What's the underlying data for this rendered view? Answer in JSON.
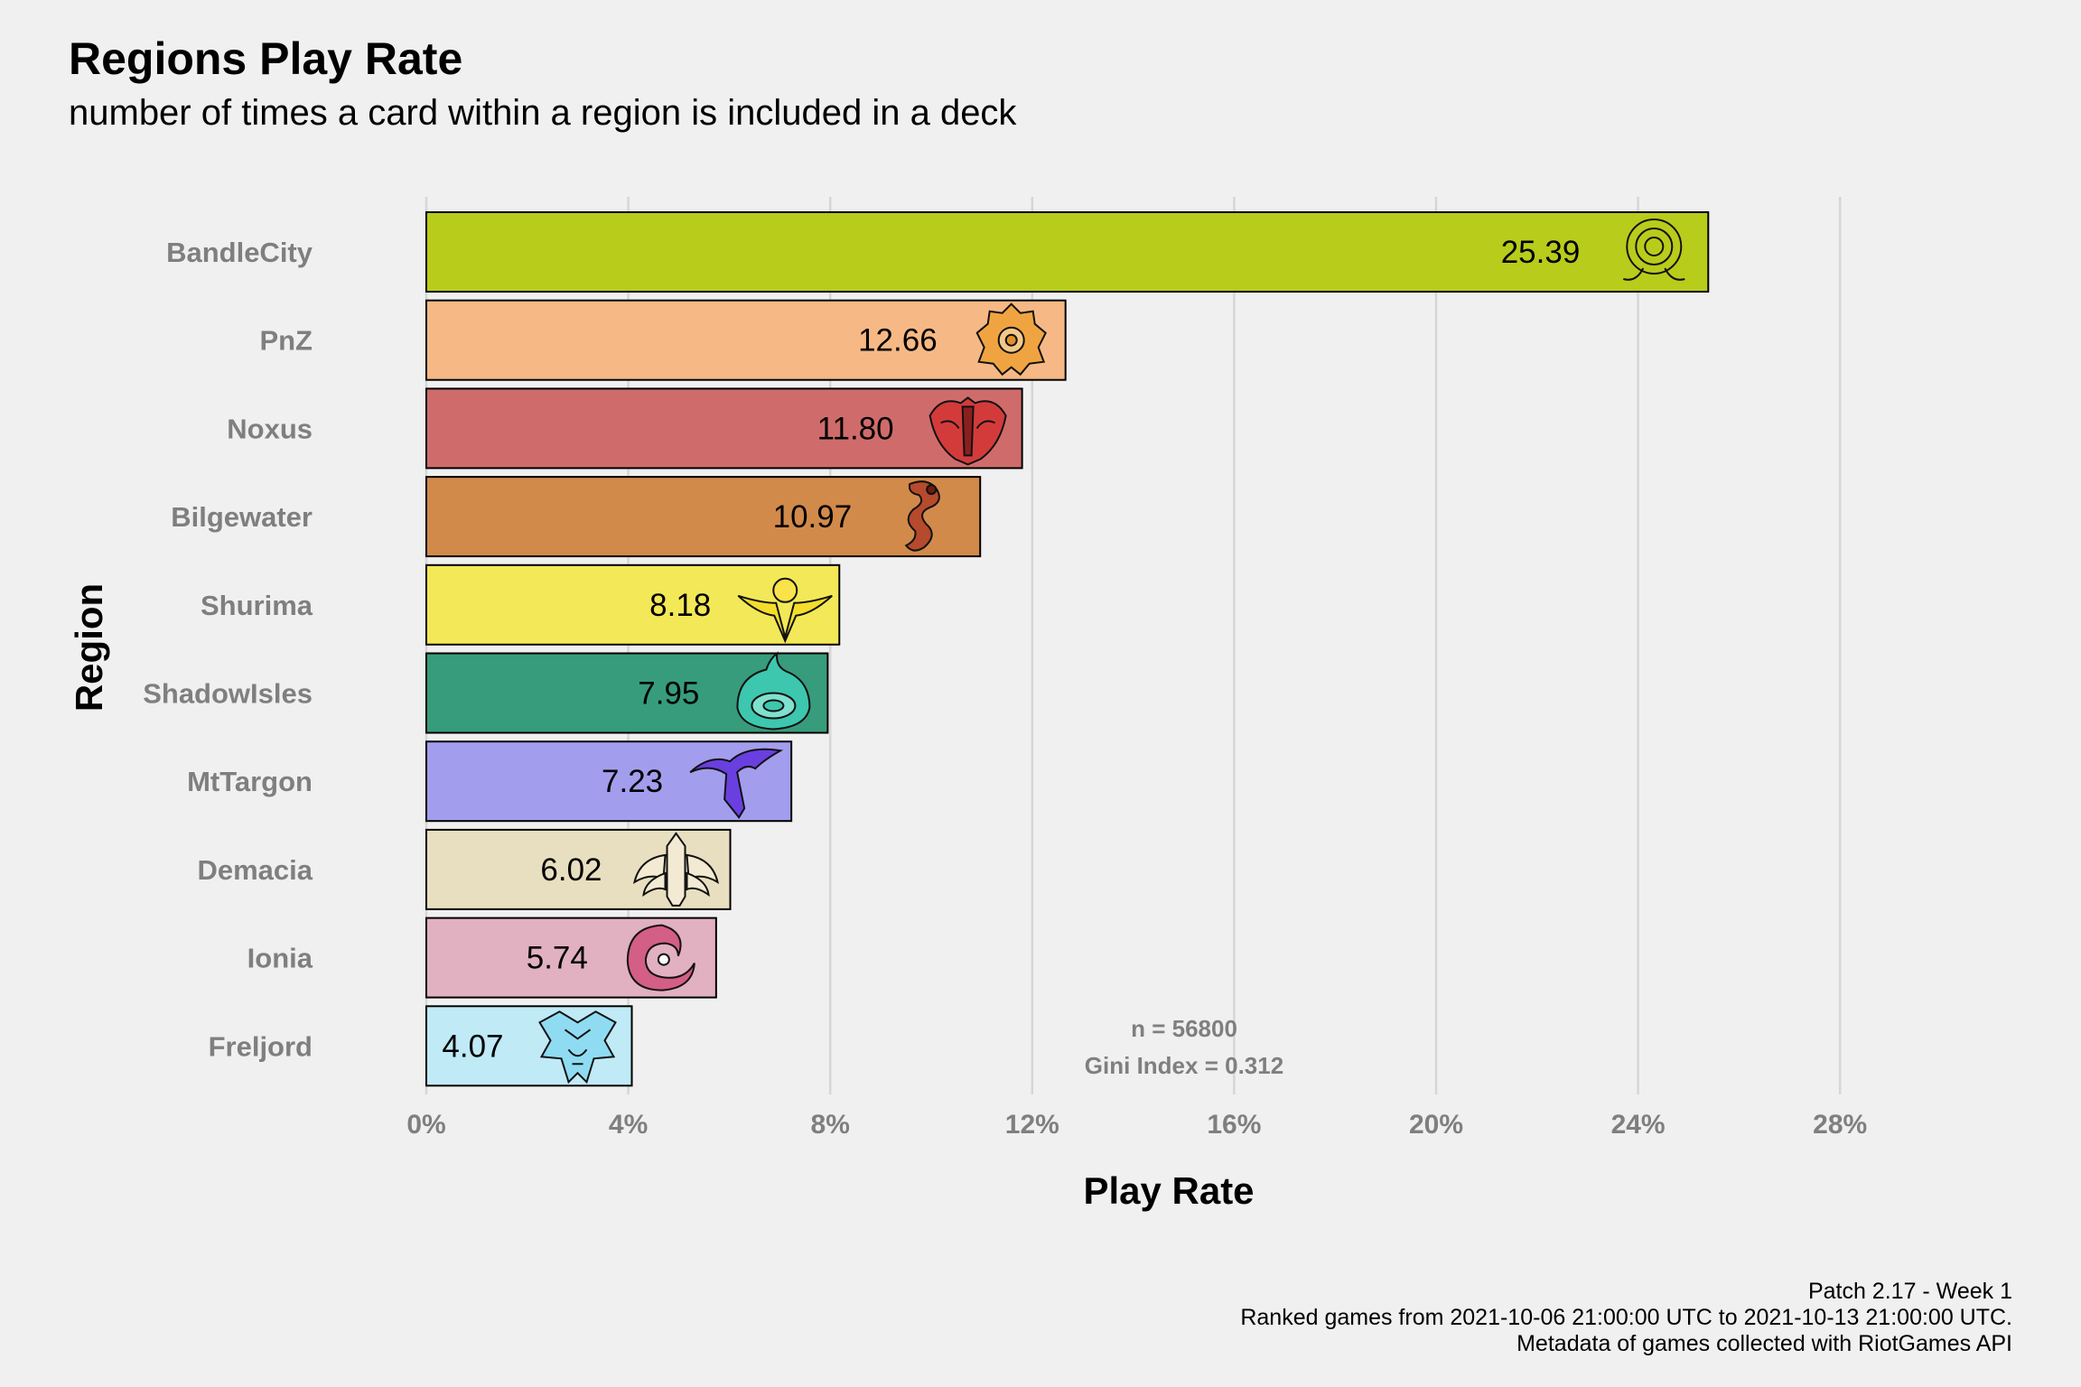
{
  "chart_data": {
    "type": "bar",
    "orientation": "horizontal",
    "title": "Regions Play Rate",
    "subtitle": "number of times a card within a region is included in a deck",
    "xlabel": "Play Rate",
    "ylabel": "Region",
    "xlim": [
      0,
      28
    ],
    "x_ticks": [
      "0%",
      "4%",
      "8%",
      "12%",
      "16%",
      "20%",
      "24%",
      "28%"
    ],
    "grid": "vertical",
    "categories": [
      "BandleCity",
      "PnZ",
      "Noxus",
      "Bilgewater",
      "Shurima",
      "ShadowIsles",
      "MtTargon",
      "Demacia",
      "Ionia",
      "Freljord"
    ],
    "values": [
      25.39,
      12.66,
      11.8,
      10.97,
      8.18,
      7.95,
      7.23,
      6.02,
      5.74,
      4.07
    ],
    "value_labels": [
      "25.39",
      "12.66",
      "11.80",
      "10.97",
      "8.18",
      "7.95",
      "7.23",
      "6.02",
      "5.74",
      "4.07"
    ],
    "colors": [
      "#b8cc1b",
      "#f6b985",
      "#cf6c6b",
      "#d28a4b",
      "#f3e858",
      "#379c7c",
      "#a39ded",
      "#e8dfc0",
      "#e1b0c1",
      "#bfeaf6"
    ],
    "icon_colors": [
      "#b8cc1b",
      "#f0a441",
      "#d33b3b",
      "#b54a2c",
      "#f4dd2b",
      "#3dc7ae",
      "#6a3fe0",
      "#f2ead2",
      "#d35e86",
      "#8fdcf2"
    ],
    "icons": [
      "bandlecity-icon",
      "pnz-icon",
      "noxus-icon",
      "bilgewater-icon",
      "shurima-icon",
      "shadowisles-icon",
      "mttargon-icon",
      "demacia-icon",
      "ionia-icon",
      "freljord-icon"
    ],
    "annotations": [
      "n = 56800",
      "Gini Index = 0.312"
    ],
    "caption": [
      "Patch 2.17 - Week 1",
      "Ranked games from 2021-10-06 21:00:00 UTC to 2021-10-13 21:00:00 UTC.",
      "Metadata of games collected with RiotGames API"
    ]
  }
}
